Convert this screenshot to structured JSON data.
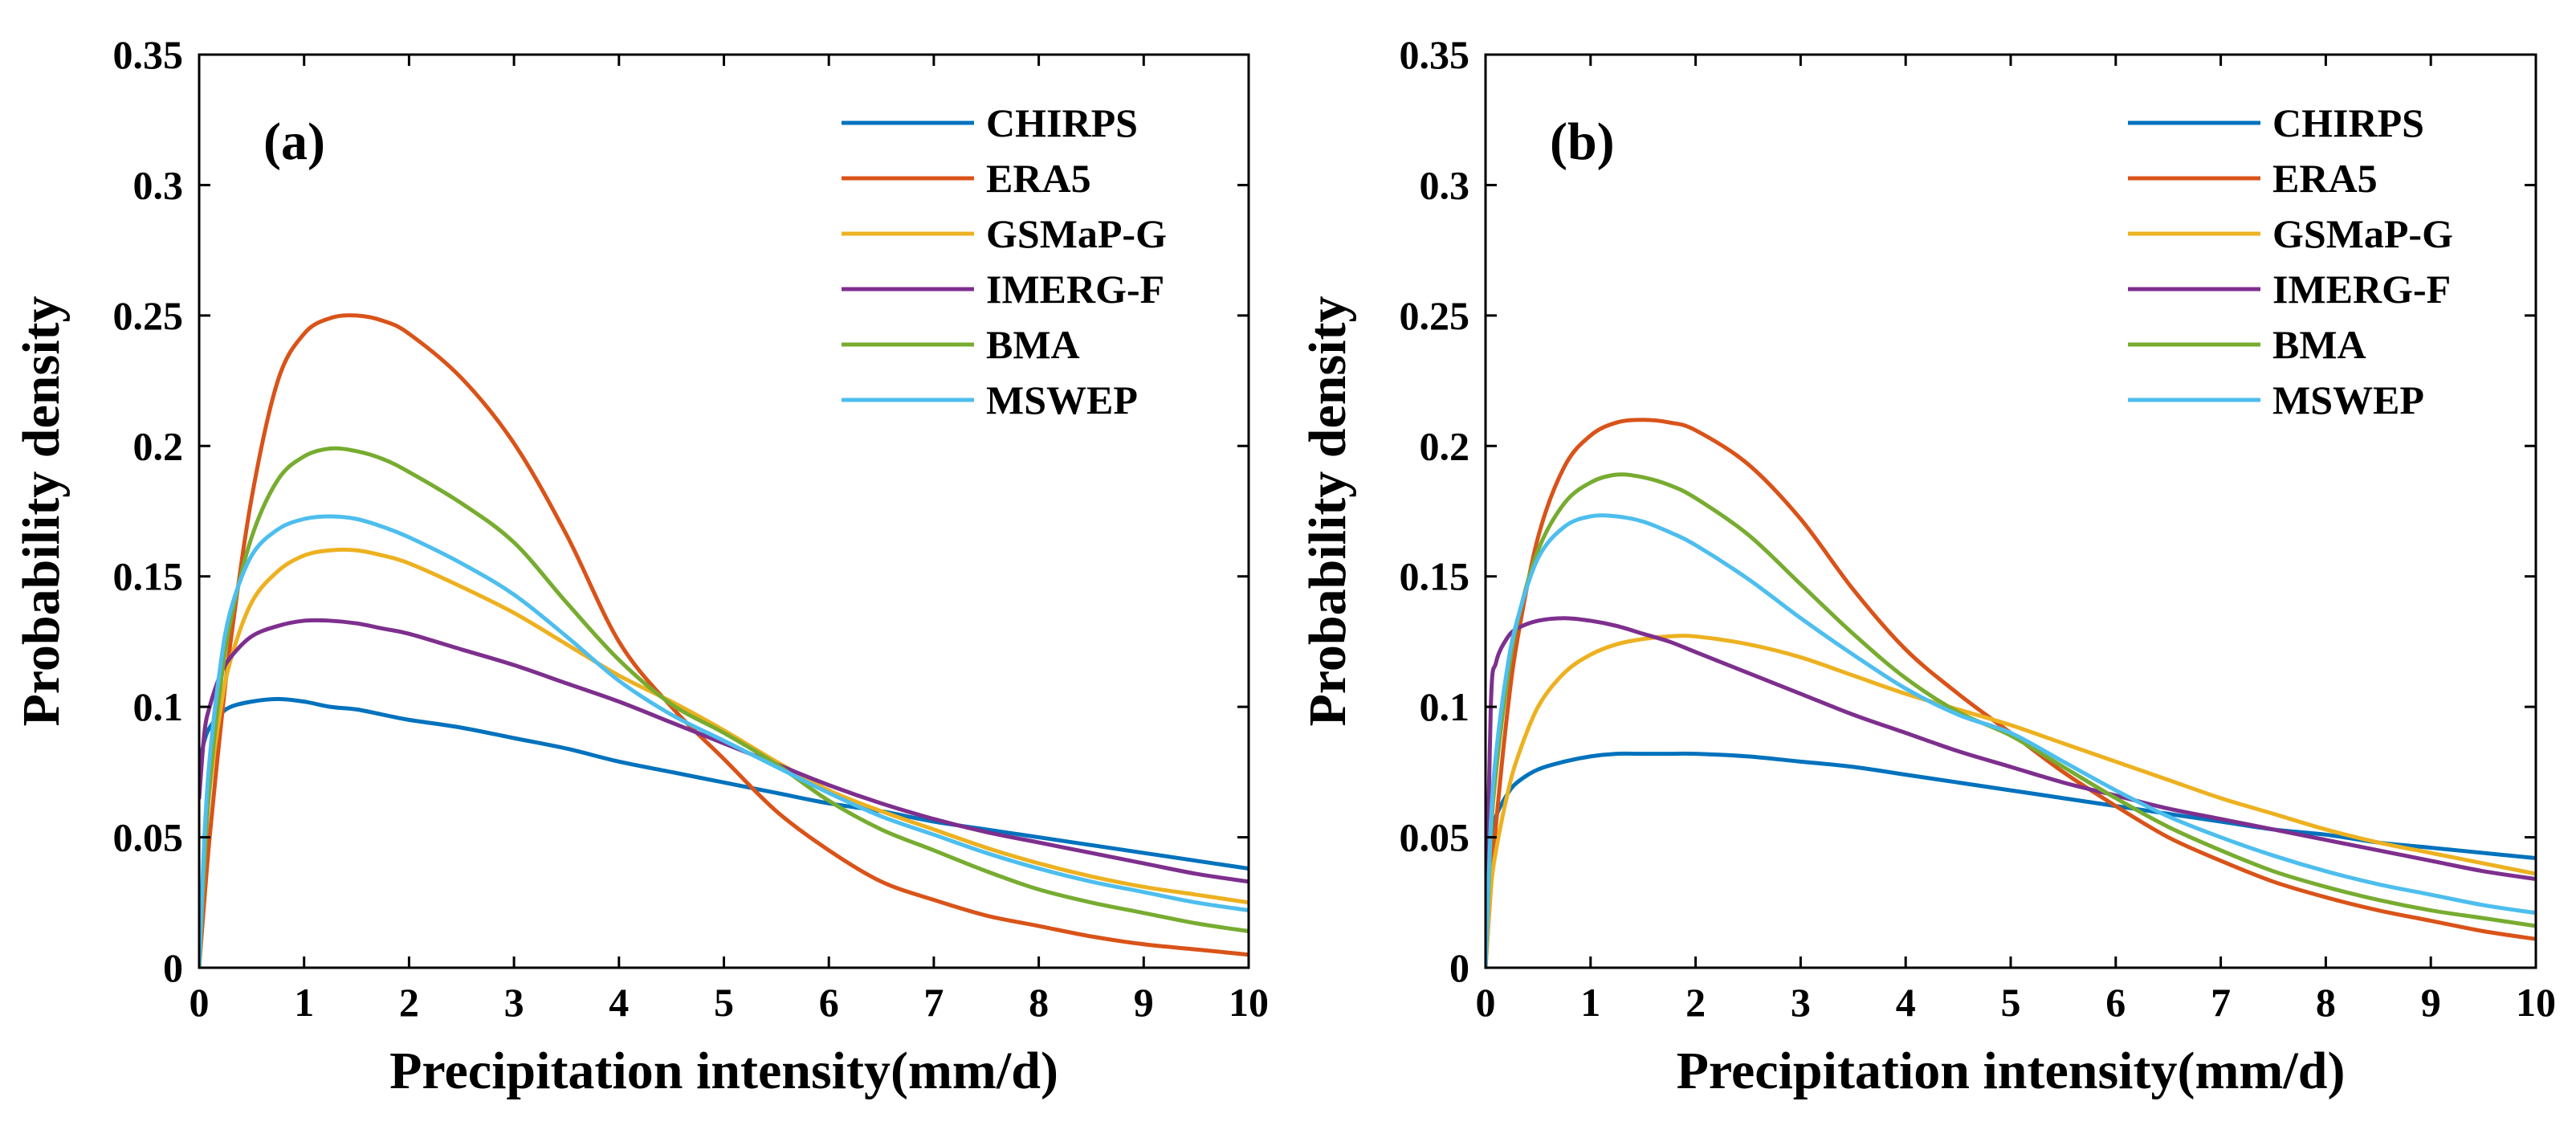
{
  "chart_data": [
    {
      "type": "line",
      "panel_label": "(a)",
      "xlabel": "Precipitation intensity(mm/d)",
      "ylabel": "Probability density",
      "xlim": [
        0,
        10
      ],
      "ylim": [
        0,
        0.35
      ],
      "xticks": [
        0,
        1,
        2,
        3,
        4,
        5,
        6,
        7,
        8,
        9,
        10
      ],
      "yticks": [
        0,
        0.05,
        0.1,
        0.15,
        0.2,
        0.25,
        0.3,
        0.35
      ],
      "ytick_labels": [
        "0",
        "0.05",
        "0.1",
        "0.15",
        "0.2",
        "0.25",
        "0.3",
        "0.35"
      ],
      "grid": false,
      "legend_position": "top-right",
      "x": [
        0,
        0.05,
        0.1,
        0.2,
        0.3,
        0.5,
        0.75,
        1,
        1.25,
        1.5,
        1.75,
        2,
        2.5,
        3,
        3.5,
        4,
        4.5,
        5,
        5.5,
        6,
        6.5,
        7,
        7.5,
        8,
        8.5,
        9,
        9.5,
        10
      ],
      "series": [
        {
          "name": "CHIRPS",
          "color": "#0072bd",
          "values": [
            0.078,
            0.087,
            0.092,
            0.097,
            0.1,
            0.102,
            0.103,
            0.102,
            0.1,
            0.099,
            0.097,
            0.095,
            0.092,
            0.088,
            0.084,
            0.079,
            0.075,
            0.071,
            0.067,
            0.063,
            0.06,
            0.056,
            0.053,
            0.05,
            0.047,
            0.044,
            0.041,
            0.038
          ]
        },
        {
          "name": "ERA5",
          "color": "#d95319",
          "values": [
            0,
            0.026,
            0.05,
            0.09,
            0.125,
            0.18,
            0.225,
            0.243,
            0.249,
            0.25,
            0.248,
            0.243,
            0.226,
            0.201,
            0.166,
            0.125,
            0.1,
            0.08,
            0.06,
            0.045,
            0.033,
            0.026,
            0.02,
            0.016,
            0.012,
            0.009,
            0.007,
            0.005
          ]
        },
        {
          "name": "GSMaP-G",
          "color": "#edb120",
          "values": [
            0,
            0.042,
            0.068,
            0.098,
            0.118,
            0.14,
            0.152,
            0.158,
            0.16,
            0.16,
            0.158,
            0.155,
            0.146,
            0.136,
            0.124,
            0.112,
            0.102,
            0.091,
            0.079,
            0.068,
            0.06,
            0.053,
            0.046,
            0.04,
            0.035,
            0.031,
            0.028,
            0.025
          ]
        },
        {
          "name": "IMERG-F",
          "color": "#7e2f8e",
          "values": [
            0.065,
            0.09,
            0.1,
            0.112,
            0.119,
            0.127,
            0.131,
            0.133,
            0.133,
            0.132,
            0.13,
            0.128,
            0.122,
            0.116,
            0.109,
            0.102,
            0.094,
            0.086,
            0.078,
            0.07,
            0.063,
            0.057,
            0.052,
            0.048,
            0.044,
            0.04,
            0.036,
            0.033
          ]
        },
        {
          "name": "BMA",
          "color": "#77ac30",
          "values": [
            0,
            0.04,
            0.07,
            0.107,
            0.133,
            0.165,
            0.187,
            0.196,
            0.199,
            0.198,
            0.195,
            0.19,
            0.178,
            0.163,
            0.14,
            0.118,
            0.101,
            0.09,
            0.078,
            0.064,
            0.053,
            0.045,
            0.037,
            0.03,
            0.025,
            0.021,
            0.017,
            0.014
          ]
        },
        {
          "name": "MSWEP",
          "color": "#4dbeee",
          "values": [
            0,
            0.05,
            0.08,
            0.115,
            0.137,
            0.158,
            0.168,
            0.172,
            0.173,
            0.172,
            0.169,
            0.165,
            0.155,
            0.143,
            0.127,
            0.11,
            0.097,
            0.087,
            0.077,
            0.067,
            0.058,
            0.051,
            0.044,
            0.038,
            0.033,
            0.029,
            0.025,
            0.022
          ]
        }
      ]
    },
    {
      "type": "line",
      "panel_label": "(b)",
      "xlabel": "Precipitation intensity(mm/d)",
      "ylabel": "Probability density",
      "xlim": [
        0,
        10
      ],
      "ylim": [
        0,
        0.35
      ],
      "xticks": [
        0,
        1,
        2,
        3,
        4,
        5,
        6,
        7,
        8,
        9,
        10
      ],
      "yticks": [
        0,
        0.05,
        0.1,
        0.15,
        0.2,
        0.25,
        0.3,
        0.35
      ],
      "ytick_labels": [
        "0",
        "0.05",
        "0.1",
        "0.15",
        "0.2",
        "0.25",
        "0.3",
        "0.35"
      ],
      "grid": false,
      "legend_position": "top-right",
      "x": [
        0,
        0.05,
        0.1,
        0.2,
        0.3,
        0.5,
        0.75,
        1,
        1.25,
        1.5,
        1.75,
        2,
        2.5,
        3,
        3.5,
        4,
        4.5,
        5,
        5.5,
        6,
        6.5,
        7,
        7.5,
        8,
        8.5,
        9,
        9.5,
        10
      ],
      "series": [
        {
          "name": "CHIRPS",
          "color": "#0072bd",
          "values": [
            0.025,
            0.048,
            0.058,
            0.066,
            0.071,
            0.076,
            0.079,
            0.081,
            0.082,
            0.082,
            0.082,
            0.082,
            0.081,
            0.079,
            0.077,
            0.074,
            0.071,
            0.068,
            0.065,
            0.062,
            0.059,
            0.056,
            0.053,
            0.051,
            0.048,
            0.046,
            0.044,
            0.042
          ]
        },
        {
          "name": "ERA5",
          "color": "#d95319",
          "values": [
            0,
            0.03,
            0.055,
            0.095,
            0.125,
            0.165,
            0.192,
            0.204,
            0.209,
            0.21,
            0.209,
            0.206,
            0.193,
            0.172,
            0.145,
            0.122,
            0.105,
            0.09,
            0.075,
            0.062,
            0.05,
            0.041,
            0.033,
            0.027,
            0.022,
            0.018,
            0.014,
            0.011
          ]
        },
        {
          "name": "GSMaP-G",
          "color": "#edb120",
          "values": [
            0,
            0.03,
            0.045,
            0.065,
            0.08,
            0.1,
            0.113,
            0.12,
            0.124,
            0.126,
            0.127,
            0.127,
            0.124,
            0.119,
            0.112,
            0.105,
            0.099,
            0.093,
            0.086,
            0.079,
            0.072,
            0.065,
            0.059,
            0.053,
            0.048,
            0.044,
            0.04,
            0.036
          ]
        },
        {
          "name": "IMERG-F",
          "color": "#7e2f8e",
          "values": [
            0,
            0.1,
            0.117,
            0.126,
            0.13,
            0.133,
            0.134,
            0.133,
            0.131,
            0.128,
            0.125,
            0.121,
            0.113,
            0.105,
            0.097,
            0.09,
            0.083,
            0.077,
            0.071,
            0.066,
            0.061,
            0.057,
            0.053,
            0.049,
            0.045,
            0.041,
            0.037,
            0.034
          ]
        },
        {
          "name": "BMA",
          "color": "#77ac30",
          "values": [
            0,
            0.05,
            0.075,
            0.108,
            0.132,
            0.16,
            0.178,
            0.186,
            0.189,
            0.188,
            0.185,
            0.18,
            0.166,
            0.147,
            0.128,
            0.111,
            0.098,
            0.089,
            0.077,
            0.065,
            0.054,
            0.045,
            0.037,
            0.031,
            0.026,
            0.022,
            0.019,
            0.016
          ]
        },
        {
          "name": "MSWEP",
          "color": "#4dbeee",
          "values": [
            0,
            0.055,
            0.082,
            0.113,
            0.133,
            0.157,
            0.169,
            0.173,
            0.173,
            0.171,
            0.167,
            0.162,
            0.149,
            0.134,
            0.12,
            0.107,
            0.097,
            0.09,
            0.079,
            0.068,
            0.058,
            0.05,
            0.043,
            0.037,
            0.032,
            0.028,
            0.024,
            0.021
          ]
        }
      ]
    }
  ]
}
